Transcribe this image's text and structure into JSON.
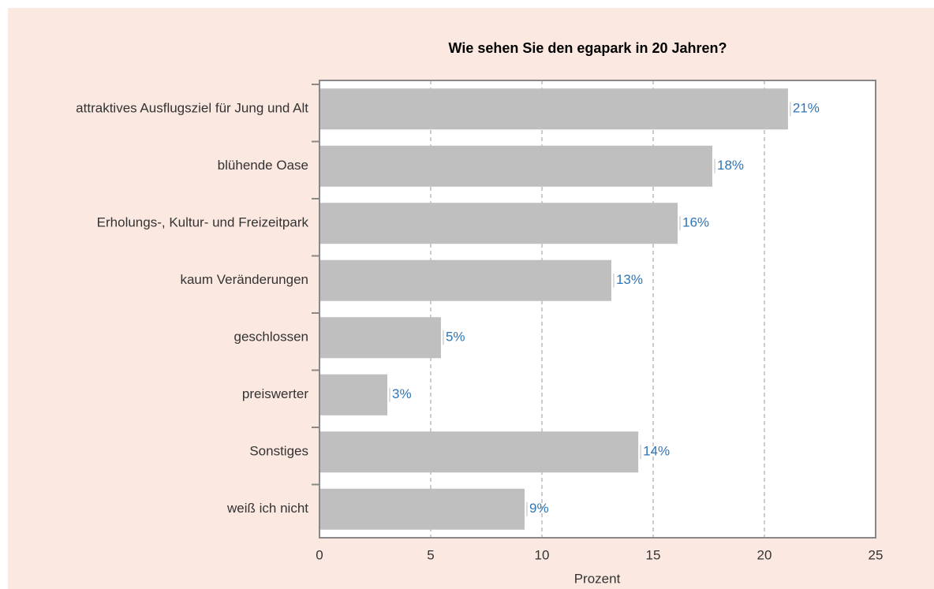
{
  "chart_data": {
    "type": "bar",
    "orientation": "horizontal",
    "title": "Wie sehen Sie den egapark in 20 Jahren?",
    "xlabel": "Prozent",
    "categories": [
      "attraktives Ausflugsziel für Jung und Alt",
      "blühende Oase",
      "Erholungs-, Kultur- und Freizeitpark",
      "kaum Veränderungen",
      "geschlossen",
      "preiswerter",
      "Sonstiges",
      "weiß ich nicht"
    ],
    "values": [
      21.06,
      17.66,
      16.1,
      13.12,
      5.46,
      3.05,
      14.33,
      9.22
    ],
    "value_labels": [
      "21%",
      "18%",
      "16%",
      "13%",
      "5%",
      "3%",
      "14%",
      "9%"
    ],
    "color": "#bfbfbf",
    "label_color": "#2e75b6",
    "xlim": [
      0,
      25
    ],
    "xticks": [
      0,
      5,
      10,
      15,
      20,
      25
    ],
    "grid": true
  }
}
